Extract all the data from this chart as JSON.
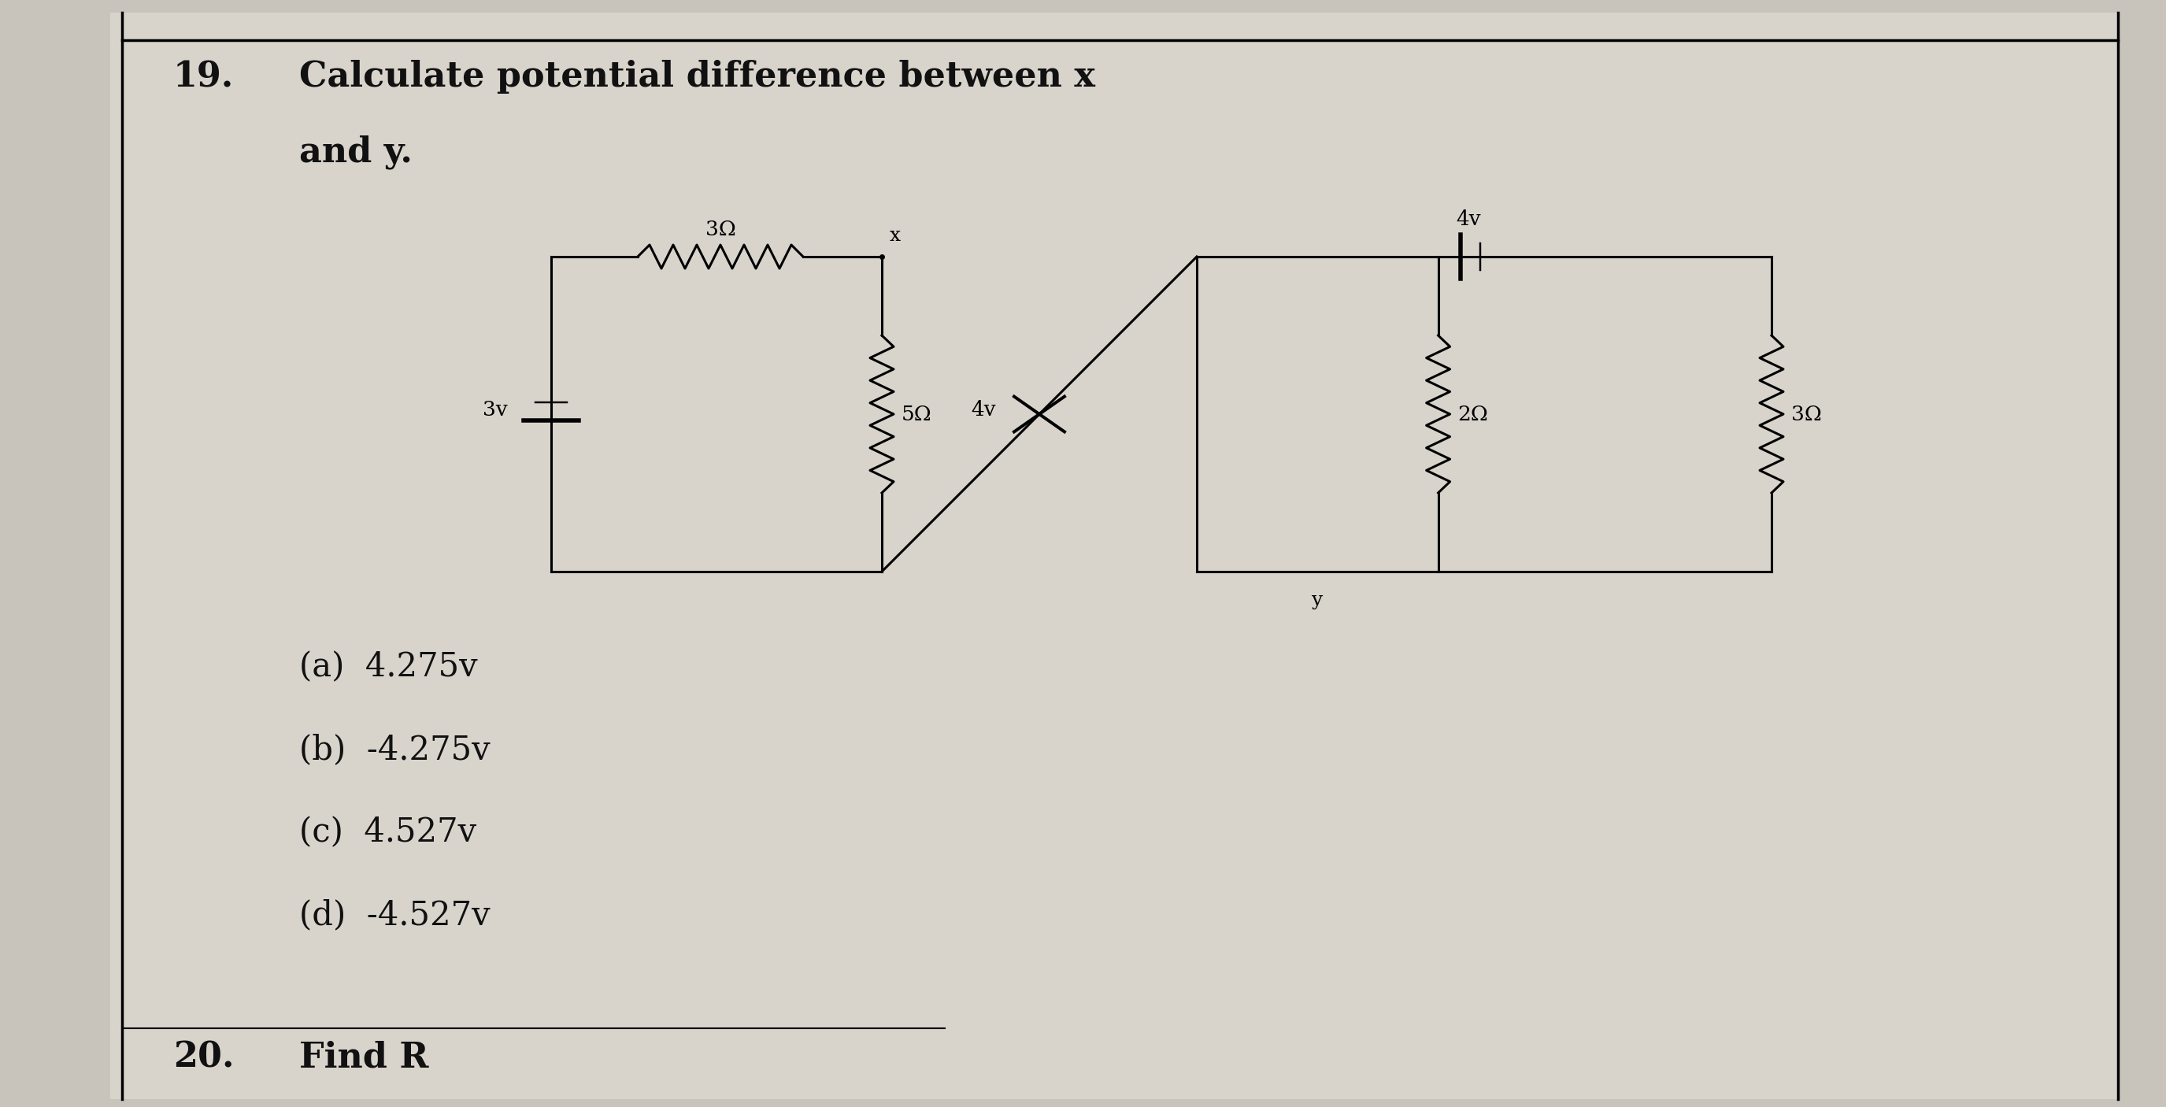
{
  "title_number": "19.",
  "title_text_line1": "Calculate potential difference between x",
  "title_text_line2": "and y.",
  "options": [
    "(a)  4.275v",
    "(b)  -4.275v",
    "(c)  4.527v",
    "(d)  -4.527v"
  ],
  "bg_color": "#c8c4bc",
  "page_color": "#d8d4cc",
  "text_color": "#111111",
  "font_size_title": 32,
  "font_size_options": 30,
  "font_size_circuit": 19,
  "circuit_labels": {
    "resistor_top_left": "3Ω",
    "resistor_mid_left": "5Ω",
    "source_left": "3v",
    "source_diag": "4v",
    "battery_top_right": "4v",
    "resistor_mid_right": "2Ω",
    "resistor_right": "3Ω",
    "node_x": "x",
    "node_y": "y"
  }
}
